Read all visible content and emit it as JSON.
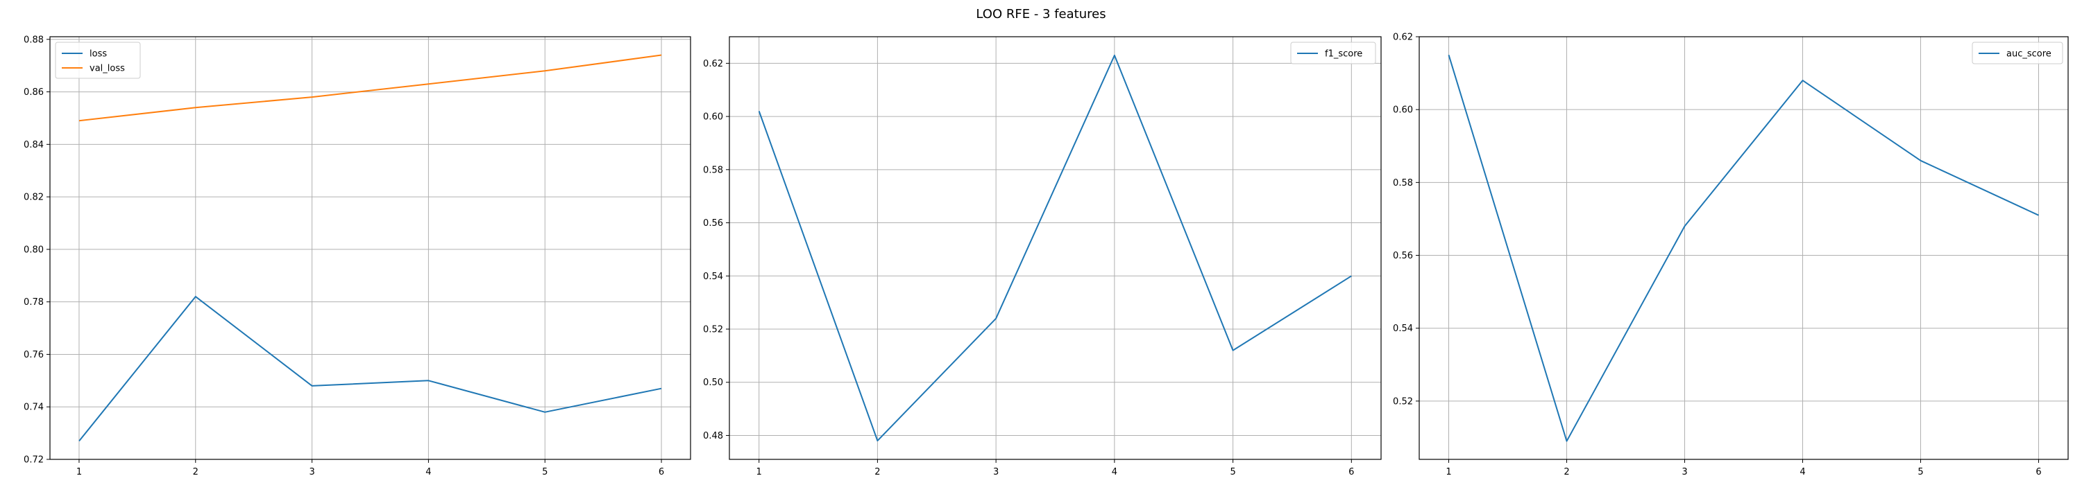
{
  "figure": {
    "title": "LOO RFE - 3 features"
  },
  "chart_data": [
    {
      "type": "line",
      "x": [
        1,
        2,
        3,
        4,
        5,
        6
      ],
      "xticks": [
        1,
        2,
        3,
        4,
        5,
        6
      ],
      "xlim": [
        0.75,
        6.25
      ],
      "ylim": [
        0.72,
        0.881
      ],
      "yticks": [
        0.72,
        0.74,
        0.76,
        0.78,
        0.8,
        0.82,
        0.84,
        0.86,
        0.88
      ],
      "ytick_labels": [
        "0.72",
        "0.74",
        "0.76",
        "0.78",
        "0.80",
        "0.82",
        "0.84",
        "0.86",
        "0.88"
      ],
      "grid": true,
      "legend_position": "top-left",
      "series": [
        {
          "name": "loss",
          "color": "#1f77b4",
          "values": [
            0.727,
            0.782,
            0.748,
            0.75,
            0.738,
            0.747
          ]
        },
        {
          "name": "val_loss",
          "color": "#ff7f0e",
          "values": [
            0.849,
            0.854,
            0.858,
            0.863,
            0.868,
            0.874
          ]
        }
      ]
    },
    {
      "type": "line",
      "x": [
        1,
        2,
        3,
        4,
        5,
        6
      ],
      "xticks": [
        1,
        2,
        3,
        4,
        5,
        6
      ],
      "xlim": [
        0.75,
        6.25
      ],
      "ylim": [
        0.471,
        0.63
      ],
      "yticks": [
        0.48,
        0.5,
        0.52,
        0.54,
        0.56,
        0.58,
        0.6,
        0.62
      ],
      "ytick_labels": [
        "0.48",
        "0.50",
        "0.52",
        "0.54",
        "0.56",
        "0.58",
        "0.60",
        "0.62"
      ],
      "grid": true,
      "legend_position": "top-right",
      "series": [
        {
          "name": "f1_score",
          "color": "#1f77b4",
          "values": [
            0.602,
            0.478,
            0.524,
            0.623,
            0.512,
            0.54
          ]
        }
      ]
    },
    {
      "type": "line",
      "x": [
        1,
        2,
        3,
        4,
        5,
        6
      ],
      "xticks": [
        1,
        2,
        3,
        4,
        5,
        6
      ],
      "xlim": [
        0.75,
        6.25
      ],
      "ylim": [
        0.504,
        0.62
      ],
      "yticks": [
        0.52,
        0.54,
        0.56,
        0.58,
        0.6,
        0.62
      ],
      "ytick_labels": [
        "0.52",
        "0.54",
        "0.56",
        "0.58",
        "0.60",
        "0.62"
      ],
      "grid": true,
      "legend_position": "top-right",
      "series": [
        {
          "name": "auc_score",
          "color": "#1f77b4",
          "values": [
            0.615,
            0.509,
            0.568,
            0.608,
            0.586,
            0.571
          ]
        }
      ]
    }
  ]
}
